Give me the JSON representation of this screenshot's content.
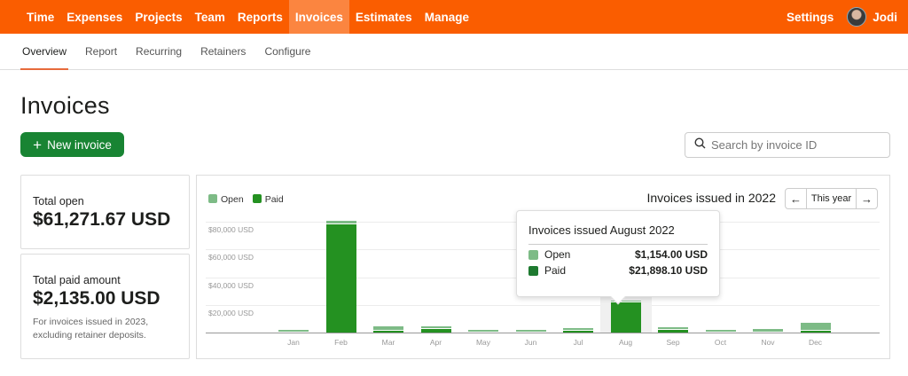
{
  "topnav": {
    "items": [
      {
        "label": "Time",
        "active": false
      },
      {
        "label": "Expenses",
        "active": false
      },
      {
        "label": "Projects",
        "active": false
      },
      {
        "label": "Team",
        "active": false
      },
      {
        "label": "Reports",
        "active": false
      },
      {
        "label": "Invoices",
        "active": true
      },
      {
        "label": "Estimates",
        "active": false
      },
      {
        "label": "Manage",
        "active": false
      }
    ],
    "settings_label": "Settings",
    "user_name": "Jodi",
    "brand_color": "#fa5d00"
  },
  "subnav": {
    "items": [
      {
        "label": "Overview",
        "active": true
      },
      {
        "label": "Report",
        "active": false
      },
      {
        "label": "Recurring",
        "active": false
      },
      {
        "label": "Retainers",
        "active": false
      },
      {
        "label": "Configure",
        "active": false
      }
    ]
  },
  "page": {
    "title": "Invoices",
    "new_invoice_label": "New invoice",
    "search_placeholder": "Search by invoice ID",
    "accent_color": "#188433"
  },
  "summary": {
    "total_open_label": "Total open",
    "total_open_value": "$61,271.67 USD",
    "total_paid_label": "Total paid amount",
    "total_paid_value": "$2,135.00 USD",
    "total_paid_note": "For invoices issued in 2023, excluding retainer deposits."
  },
  "chart_header": {
    "legend_open": "Open",
    "legend_paid": "Paid",
    "title": "Invoices issued in 2022",
    "prev_icon": "arrow-left-icon",
    "period_label": "This year",
    "next_icon": "arrow-right-icon"
  },
  "tooltip": {
    "title": "Invoices issued August 2022",
    "open_label": "Open",
    "open_value": "$1,154.00 USD",
    "paid_label": "Paid",
    "paid_value": "$21,898.10 USD"
  },
  "chart_data": {
    "type": "bar",
    "stacked": true,
    "title": "Invoices issued in 2022",
    "xlabel": "",
    "ylabel": "",
    "ylim": [
      0,
      80000
    ],
    "yticks": [
      "$20,000 USD",
      "$40,000 USD",
      "$60,000 USD",
      "$80,000 USD"
    ],
    "ytick_values": [
      20000,
      40000,
      60000,
      80000
    ],
    "categories": [
      "Jan",
      "Feb",
      "Mar",
      "Apr",
      "May",
      "Jun",
      "Jul",
      "Aug",
      "Sep",
      "Oct",
      "Nov",
      "Dec"
    ],
    "series": [
      {
        "name": "Paid",
        "color": "#249121",
        "values": [
          0,
          78500,
          1500,
          2500,
          0,
          0,
          1500,
          21898.1,
          2000,
          0,
          0,
          1500
        ]
      },
      {
        "name": "Open",
        "color": "#7dbb86",
        "values": [
          2000,
          2500,
          3000,
          2000,
          1800,
          1800,
          2000,
          1154.0,
          2000,
          1800,
          2500,
          5500
        ]
      }
    ],
    "highlighted_category": "Aug",
    "legend_position": "top-left",
    "grid": true
  }
}
